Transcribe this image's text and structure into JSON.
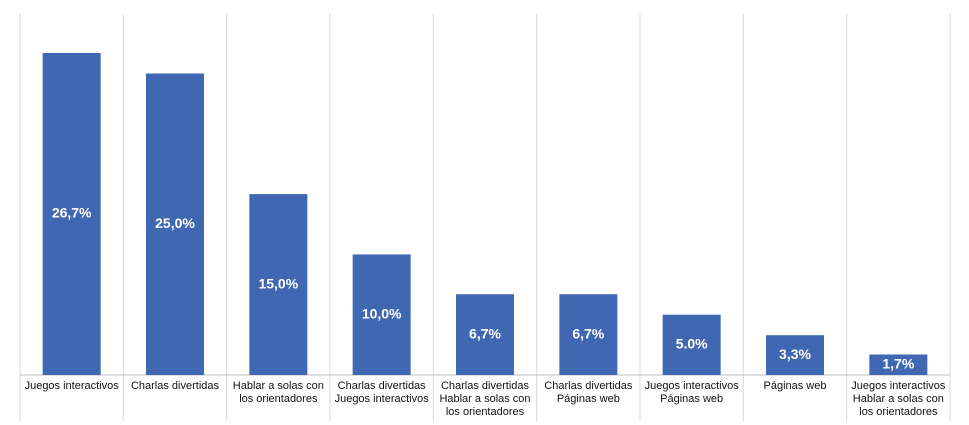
{
  "chart_data": {
    "type": "bar",
    "categories": [
      [
        "Juegos interactivos"
      ],
      [
        "Charlas divertidas"
      ],
      [
        "Hablar a solas con",
        "los orientadores"
      ],
      [
        "Charlas divertidas",
        "Juegos interactivos"
      ],
      [
        "Charlas divertidas",
        "Hablar a solas con",
        "los orientadores"
      ],
      [
        "Charlas divertidas",
        "Páginas web"
      ],
      [
        "Juegos interactivos",
        "Páginas web"
      ],
      [
        "Páginas web"
      ],
      [
        "Juegos interactivos",
        "Hablar a solas con",
        "los orientadores"
      ]
    ],
    "values": [
      26.7,
      25.0,
      15.0,
      10.0,
      6.7,
      6.7,
      5.0,
      3.3,
      1.7
    ],
    "value_labels": [
      "26,7%",
      "25,0%",
      "15,0%",
      "10,0%",
      "6,7%",
      "6,7%",
      "5.0%",
      "3,3%",
      "1,7%"
    ],
    "color": "#4068b2"
  }
}
